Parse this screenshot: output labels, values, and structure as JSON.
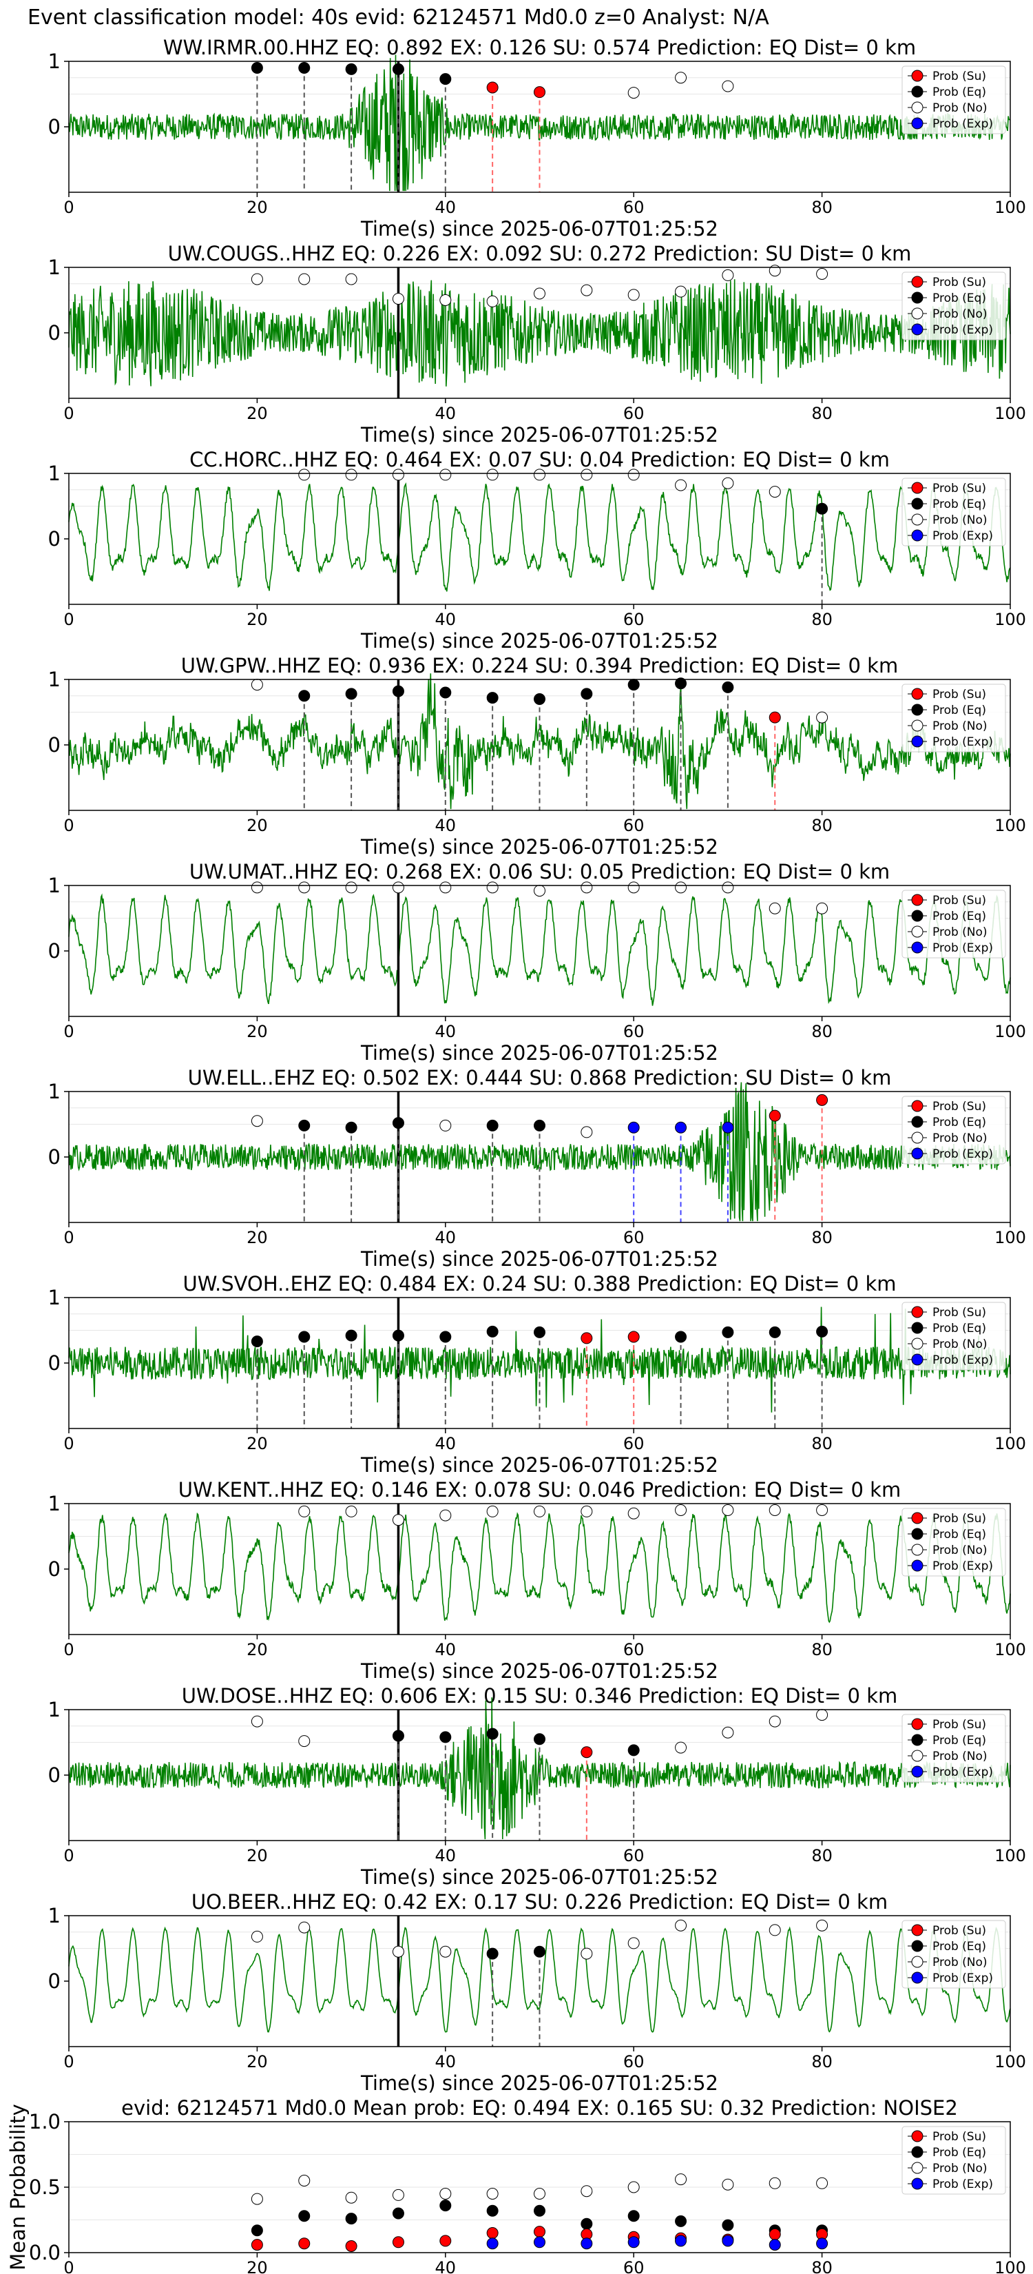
{
  "figure_title": "Event classification model: 40s evid: 62124571 Md0.0 z=0 Analyst: N/A",
  "legend_labels": [
    "Prob (Su)",
    "Prob (Eq)",
    "Prob (No)",
    "Prob (Exp)"
  ],
  "colors": {
    "su": "#ff0000",
    "eq": "#000000",
    "no": "#ffffff",
    "exp": "#0000ff",
    "trace": "#008000",
    "onset": "#000000"
  },
  "xlabel": "Time(s) since 2025-06-07T01:25:52",
  "chart_data": [
    {
      "type": "line",
      "title": "WW.IRMR.00.HHZ   EQ: 0.892  EX: 0.126  SU: 0.574   Prediction: EQ    Dist= 0 km",
      "xlim": [
        0,
        100
      ],
      "xticks": [
        0,
        20,
        40,
        60,
        80,
        100
      ],
      "ylim": [
        -1,
        1
      ],
      "yticks": [
        0,
        1
      ],
      "trace_style": "burst",
      "burst_center": 35,
      "onset_x": 35,
      "points": [
        {
          "x": 20,
          "y": 0.9,
          "c": "eq"
        },
        {
          "x": 25,
          "y": 0.9,
          "c": "eq"
        },
        {
          "x": 30,
          "y": 0.88,
          "c": "eq"
        },
        {
          "x": 35,
          "y": 0.88,
          "c": "eq"
        },
        {
          "x": 40,
          "y": 0.73,
          "c": "eq"
        },
        {
          "x": 45,
          "y": 0.6,
          "c": "su"
        },
        {
          "x": 50,
          "y": 0.53,
          "c": "su"
        },
        {
          "x": 60,
          "y": 0.52,
          "c": "no"
        },
        {
          "x": 65,
          "y": 0.75,
          "c": "no"
        },
        {
          "x": 70,
          "y": 0.62,
          "c": "no"
        }
      ]
    },
    {
      "type": "line",
      "title": "UW.COUGS..HHZ   EQ: 0.226  EX: 0.092  SU: 0.272   Prediction: SU    Dist= 0 km",
      "xlim": [
        0,
        100
      ],
      "xticks": [
        0,
        20,
        40,
        60,
        80,
        100
      ],
      "ylim": [
        -1,
        1
      ],
      "yticks": [
        0,
        1
      ],
      "trace_style": "dense",
      "onset_x": 35,
      "points": [
        {
          "x": 20,
          "y": 0.82,
          "c": "no"
        },
        {
          "x": 25,
          "y": 0.82,
          "c": "no"
        },
        {
          "x": 30,
          "y": 0.82,
          "c": "no"
        },
        {
          "x": 35,
          "y": 0.52,
          "c": "no"
        },
        {
          "x": 40,
          "y": 0.5,
          "c": "no"
        },
        {
          "x": 45,
          "y": 0.48,
          "c": "no"
        },
        {
          "x": 50,
          "y": 0.6,
          "c": "no"
        },
        {
          "x": 55,
          "y": 0.65,
          "c": "no"
        },
        {
          "x": 60,
          "y": 0.58,
          "c": "no"
        },
        {
          "x": 65,
          "y": 0.63,
          "c": "no"
        },
        {
          "x": 70,
          "y": 0.88,
          "c": "no"
        },
        {
          "x": 75,
          "y": 0.95,
          "c": "no"
        },
        {
          "x": 80,
          "y": 0.9,
          "c": "no"
        }
      ]
    },
    {
      "type": "line",
      "title": "CC.HORC..HHZ   EQ: 0.464  EX: 0.07  SU: 0.04   Prediction: EQ    Dist= 0 km",
      "xlim": [
        0,
        100
      ],
      "xticks": [
        0,
        20,
        40,
        60,
        80,
        100
      ],
      "ylim": [
        -1,
        1
      ],
      "yticks": [
        0,
        1
      ],
      "trace_style": "wave",
      "onset_x": 35,
      "points": [
        {
          "x": 25,
          "y": 0.98,
          "c": "no"
        },
        {
          "x": 30,
          "y": 0.98,
          "c": "no"
        },
        {
          "x": 35,
          "y": 0.98,
          "c": "no"
        },
        {
          "x": 40,
          "y": 0.98,
          "c": "no"
        },
        {
          "x": 45,
          "y": 0.98,
          "c": "no"
        },
        {
          "x": 50,
          "y": 0.98,
          "c": "no"
        },
        {
          "x": 55,
          "y": 0.98,
          "c": "no"
        },
        {
          "x": 60,
          "y": 0.98,
          "c": "no"
        },
        {
          "x": 65,
          "y": 0.82,
          "c": "no"
        },
        {
          "x": 70,
          "y": 0.85,
          "c": "no"
        },
        {
          "x": 75,
          "y": 0.72,
          "c": "no"
        },
        {
          "x": 80,
          "y": 0.46,
          "c": "eq"
        }
      ]
    },
    {
      "type": "line",
      "title": "UW.GPW..HHZ   EQ: 0.936  EX: 0.224  SU: 0.394   Prediction: EQ    Dist= 0 km",
      "xlim": [
        0,
        100
      ],
      "xticks": [
        0,
        20,
        40,
        60,
        80,
        100
      ],
      "ylim": [
        -1,
        1
      ],
      "yticks": [
        0,
        1
      ],
      "trace_style": "noise",
      "onset_x": 35,
      "points": [
        {
          "x": 20,
          "y": 0.92,
          "c": "no"
        },
        {
          "x": 25,
          "y": 0.75,
          "c": "eq"
        },
        {
          "x": 30,
          "y": 0.78,
          "c": "eq"
        },
        {
          "x": 35,
          "y": 0.82,
          "c": "eq"
        },
        {
          "x": 40,
          "y": 0.8,
          "c": "eq"
        },
        {
          "x": 45,
          "y": 0.72,
          "c": "eq"
        },
        {
          "x": 50,
          "y": 0.7,
          "c": "eq"
        },
        {
          "x": 55,
          "y": 0.78,
          "c": "eq"
        },
        {
          "x": 60,
          "y": 0.92,
          "c": "eq"
        },
        {
          "x": 65,
          "y": 0.94,
          "c": "eq"
        },
        {
          "x": 70,
          "y": 0.88,
          "c": "eq"
        },
        {
          "x": 75,
          "y": 0.42,
          "c": "su"
        },
        {
          "x": 80,
          "y": 0.42,
          "c": "no"
        }
      ]
    },
    {
      "type": "line",
      "title": "UW.UMAT..HHZ   EQ: 0.268  EX: 0.06  SU: 0.05   Prediction: EQ    Dist= 0 km",
      "xlim": [
        0,
        100
      ],
      "xticks": [
        0,
        20,
        40,
        60,
        80,
        100
      ],
      "ylim": [
        -1,
        1
      ],
      "yticks": [
        0,
        1
      ],
      "trace_style": "wave",
      "onset_x": 35,
      "points": [
        {
          "x": 20,
          "y": 0.97,
          "c": "no"
        },
        {
          "x": 25,
          "y": 0.97,
          "c": "no"
        },
        {
          "x": 30,
          "y": 0.97,
          "c": "no"
        },
        {
          "x": 35,
          "y": 0.97,
          "c": "no"
        },
        {
          "x": 40,
          "y": 0.97,
          "c": "no"
        },
        {
          "x": 45,
          "y": 0.97,
          "c": "no"
        },
        {
          "x": 50,
          "y": 0.92,
          "c": "no"
        },
        {
          "x": 55,
          "y": 0.97,
          "c": "no"
        },
        {
          "x": 60,
          "y": 0.97,
          "c": "no"
        },
        {
          "x": 65,
          "y": 0.97,
          "c": "no"
        },
        {
          "x": 70,
          "y": 0.97,
          "c": "no"
        },
        {
          "x": 75,
          "y": 0.65,
          "c": "no"
        },
        {
          "x": 80,
          "y": 0.65,
          "c": "no"
        }
      ]
    },
    {
      "type": "line",
      "title": "UW.ELL..EHZ   EQ: 0.502  EX: 0.444  SU: 0.868   Prediction: SU    Dist= 0 km",
      "xlim": [
        0,
        100
      ],
      "xticks": [
        0,
        20,
        40,
        60,
        80,
        100
      ],
      "ylim": [
        -1,
        1
      ],
      "yticks": [
        0,
        1
      ],
      "trace_style": "burst",
      "burst_center": 72,
      "onset_x": 35,
      "points": [
        {
          "x": 20,
          "y": 0.55,
          "c": "no"
        },
        {
          "x": 25,
          "y": 0.48,
          "c": "eq"
        },
        {
          "x": 30,
          "y": 0.45,
          "c": "eq"
        },
        {
          "x": 35,
          "y": 0.52,
          "c": "eq"
        },
        {
          "x": 40,
          "y": 0.48,
          "c": "no"
        },
        {
          "x": 45,
          "y": 0.48,
          "c": "eq"
        },
        {
          "x": 50,
          "y": 0.48,
          "c": "eq"
        },
        {
          "x": 55,
          "y": 0.38,
          "c": "no"
        },
        {
          "x": 60,
          "y": 0.45,
          "c": "exp"
        },
        {
          "x": 65,
          "y": 0.45,
          "c": "exp"
        },
        {
          "x": 70,
          "y": 0.45,
          "c": "exp"
        },
        {
          "x": 75,
          "y": 0.63,
          "c": "su"
        },
        {
          "x": 80,
          "y": 0.87,
          "c": "su"
        }
      ]
    },
    {
      "type": "line",
      "title": "UW.SVOH..EHZ   EQ: 0.484  EX: 0.24  SU: 0.388   Prediction: EQ    Dist= 0 km",
      "xlim": [
        0,
        100
      ],
      "xticks": [
        0,
        20,
        40,
        60,
        80,
        100
      ],
      "ylim": [
        -1,
        1
      ],
      "yticks": [
        0,
        1
      ],
      "trace_style": "spiky",
      "onset_x": 35,
      "points": [
        {
          "x": 20,
          "y": 0.33,
          "c": "eq"
        },
        {
          "x": 25,
          "y": 0.4,
          "c": "eq"
        },
        {
          "x": 30,
          "y": 0.42,
          "c": "eq"
        },
        {
          "x": 35,
          "y": 0.42,
          "c": "eq"
        },
        {
          "x": 40,
          "y": 0.4,
          "c": "eq"
        },
        {
          "x": 45,
          "y": 0.48,
          "c": "eq"
        },
        {
          "x": 50,
          "y": 0.47,
          "c": "eq"
        },
        {
          "x": 55,
          "y": 0.38,
          "c": "su"
        },
        {
          "x": 60,
          "y": 0.4,
          "c": "su"
        },
        {
          "x": 65,
          "y": 0.4,
          "c": "eq"
        },
        {
          "x": 70,
          "y": 0.47,
          "c": "eq"
        },
        {
          "x": 75,
          "y": 0.47,
          "c": "eq"
        },
        {
          "x": 80,
          "y": 0.48,
          "c": "eq"
        }
      ]
    },
    {
      "type": "line",
      "title": "UW.KENT..HHZ   EQ: 0.146  EX: 0.078  SU: 0.046   Prediction: EQ    Dist= 0 km",
      "xlim": [
        0,
        100
      ],
      "xticks": [
        0,
        20,
        40,
        60,
        80,
        100
      ],
      "ylim": [
        -1,
        1
      ],
      "yticks": [
        0,
        1
      ],
      "trace_style": "wave",
      "onset_x": 35,
      "points": [
        {
          "x": 25,
          "y": 0.88,
          "c": "no"
        },
        {
          "x": 30,
          "y": 0.88,
          "c": "no"
        },
        {
          "x": 35,
          "y": 0.75,
          "c": "no"
        },
        {
          "x": 40,
          "y": 0.82,
          "c": "no"
        },
        {
          "x": 45,
          "y": 0.88,
          "c": "no"
        },
        {
          "x": 50,
          "y": 0.88,
          "c": "no"
        },
        {
          "x": 55,
          "y": 0.88,
          "c": "no"
        },
        {
          "x": 60,
          "y": 0.85,
          "c": "no"
        },
        {
          "x": 65,
          "y": 0.9,
          "c": "no"
        },
        {
          "x": 70,
          "y": 0.9,
          "c": "no"
        },
        {
          "x": 75,
          "y": 0.9,
          "c": "no"
        },
        {
          "x": 80,
          "y": 0.9,
          "c": "no"
        }
      ]
    },
    {
      "type": "line",
      "title": "UW.DOSE..HHZ   EQ: 0.606  EX: 0.15  SU: 0.346   Prediction: EQ    Dist= 0 km",
      "xlim": [
        0,
        100
      ],
      "xticks": [
        0,
        20,
        40,
        60,
        80,
        100
      ],
      "ylim": [
        -1,
        1
      ],
      "yticks": [
        0,
        1
      ],
      "trace_style": "burst",
      "burst_center": 45,
      "onset_x": 35,
      "points": [
        {
          "x": 20,
          "y": 0.82,
          "c": "no"
        },
        {
          "x": 25,
          "y": 0.52,
          "c": "no"
        },
        {
          "x": 35,
          "y": 0.6,
          "c": "eq"
        },
        {
          "x": 40,
          "y": 0.58,
          "c": "eq"
        },
        {
          "x": 45,
          "y": 0.63,
          "c": "eq"
        },
        {
          "x": 50,
          "y": 0.55,
          "c": "eq"
        },
        {
          "x": 55,
          "y": 0.35,
          "c": "su"
        },
        {
          "x": 60,
          "y": 0.38,
          "c": "eq"
        },
        {
          "x": 65,
          "y": 0.42,
          "c": "no"
        },
        {
          "x": 70,
          "y": 0.65,
          "c": "no"
        },
        {
          "x": 75,
          "y": 0.82,
          "c": "no"
        },
        {
          "x": 80,
          "y": 0.92,
          "c": "no"
        }
      ]
    },
    {
      "type": "line",
      "title": "UO.BEER..HHZ   EQ: 0.42  EX: 0.17  SU: 0.226   Prediction: EQ    Dist= 0 km",
      "xlim": [
        0,
        100
      ],
      "xticks": [
        0,
        20,
        40,
        60,
        80,
        100
      ],
      "ylim": [
        -1,
        1
      ],
      "yticks": [
        0,
        1
      ],
      "trace_style": "smooth",
      "onset_x": 35,
      "points": [
        {
          "x": 20,
          "y": 0.68,
          "c": "no"
        },
        {
          "x": 25,
          "y": 0.82,
          "c": "no"
        },
        {
          "x": 35,
          "y": 0.45,
          "c": "no"
        },
        {
          "x": 40,
          "y": 0.45,
          "c": "no"
        },
        {
          "x": 45,
          "y": 0.42,
          "c": "eq"
        },
        {
          "x": 50,
          "y": 0.45,
          "c": "eq"
        },
        {
          "x": 55,
          "y": 0.42,
          "c": "no"
        },
        {
          "x": 60,
          "y": 0.58,
          "c": "no"
        },
        {
          "x": 65,
          "y": 0.85,
          "c": "no"
        },
        {
          "x": 75,
          "y": 0.78,
          "c": "no"
        },
        {
          "x": 80,
          "y": 0.85,
          "c": "no"
        }
      ]
    },
    {
      "type": "scatter",
      "title": "evid: 62124571  Md0.0   Mean prob:   EQ: 0.494  EX: 0.165  SU: 0.32   Prediction: NOISE2",
      "ylabel": "Mean Probability",
      "xlabel": "",
      "xlim": [
        0,
        100
      ],
      "xticks": [
        0,
        20,
        40,
        60,
        80,
        100
      ],
      "ylim": [
        0,
        1
      ],
      "yticks": [
        0.0,
        0.5,
        1.0
      ],
      "ytick_labels": [
        "0.0",
        "0.5",
        "1.0"
      ],
      "series": [
        {
          "name": "Prob (No)",
          "c": "no",
          "x": [
            20,
            25,
            30,
            35,
            40,
            45,
            50,
            55,
            60,
            65,
            70,
            75,
            80
          ],
          "y": [
            0.41,
            0.55,
            0.42,
            0.44,
            0.45,
            0.45,
            0.45,
            0.47,
            0.5,
            0.56,
            0.52,
            0.53,
            0.53
          ]
        },
        {
          "name": "Prob (Eq)",
          "c": "eq",
          "x": [
            20,
            25,
            30,
            35,
            40,
            45,
            50,
            55,
            60,
            65,
            70,
            75,
            80
          ],
          "y": [
            0.17,
            0.28,
            0.26,
            0.3,
            0.36,
            0.32,
            0.32,
            0.22,
            0.28,
            0.24,
            0.21,
            0.17,
            0.17
          ]
        },
        {
          "name": "Prob (Su)",
          "c": "su",
          "x": [
            20,
            25,
            30,
            35,
            40,
            45,
            50,
            55,
            60,
            65,
            70,
            75,
            80
          ],
          "y": [
            0.06,
            0.07,
            0.05,
            0.08,
            0.09,
            0.15,
            0.16,
            0.14,
            0.12,
            0.11,
            0.1,
            0.14,
            0.14
          ]
        },
        {
          "name": "Prob (Exp)",
          "c": "exp",
          "x": [
            45,
            50,
            55,
            60,
            65,
            70,
            75,
            80
          ],
          "y": [
            0.07,
            0.08,
            0.07,
            0.08,
            0.09,
            0.09,
            0.06,
            0.07
          ]
        }
      ]
    }
  ]
}
